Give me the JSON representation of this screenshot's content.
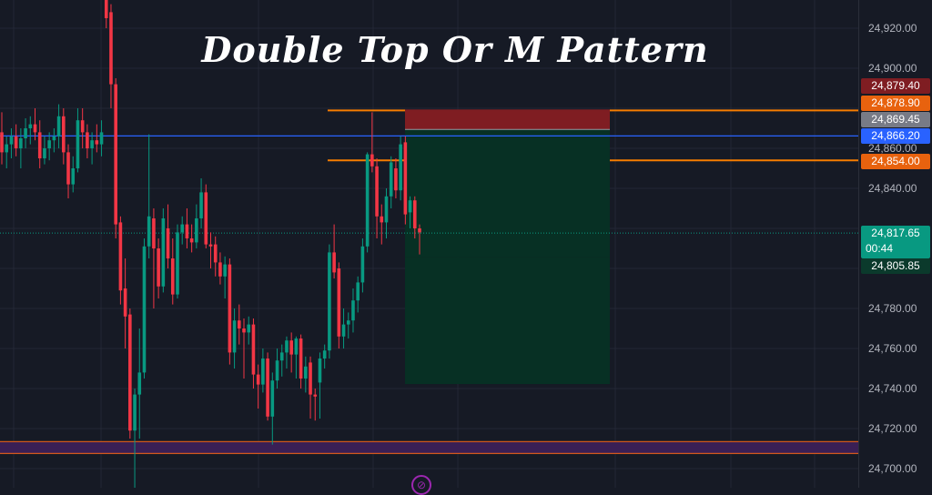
{
  "title": "Double Top Or M Pattern",
  "colors": {
    "background": "#161a25",
    "grid": "#232735",
    "up": "#089981",
    "down": "#f23645",
    "level_orange": "#f57c00",
    "level_blue": "#2962ff",
    "stop_zone": "#7f1d22",
    "target_zone": "#073024",
    "support_band": "#3a1f55",
    "alert_icon": "#9c27b0"
  },
  "price_axis": {
    "ticks": [
      "24,920.00",
      "24,900.00",
      "24,860.00",
      "24,840.00",
      "24,780.00",
      "24,760.00",
      "24,740.00",
      "24,720.00",
      "24,700.00"
    ],
    "labels": [
      {
        "value": "24,879.40",
        "color": "#7f1d22"
      },
      {
        "value": "24,878.90",
        "color": "#e8620e"
      },
      {
        "value": "24,869.45",
        "color": "#787b86"
      },
      {
        "value": "24,866.20",
        "color": "#2962ff"
      },
      {
        "value": "24,854.00",
        "color": "#e8620e"
      },
      {
        "value": "24,817.65",
        "countdown": "00:44",
        "color": "#089981"
      },
      {
        "value": "24,805.85",
        "color": "#0b3a2c"
      }
    ]
  },
  "chart_data": {
    "type": "candlestick",
    "title": "Double Top Or M Pattern",
    "ylim": [
      24690,
      24935
    ],
    "y_ticks": [
      24700,
      24720,
      24740,
      24760,
      24780,
      24800,
      24820,
      24840,
      24860,
      24880,
      24900,
      24920
    ],
    "grid": true,
    "ohlc": [
      [
        24868,
        24878,
        24852,
        24858
      ],
      [
        24858,
        24866,
        24850,
        24862
      ],
      [
        24862,
        24870,
        24855,
        24866
      ],
      [
        24866,
        24872,
        24856,
        24860
      ],
      [
        24860,
        24870,
        24850,
        24865
      ],
      [
        24865,
        24875,
        24860,
        24870
      ],
      [
        24870,
        24876,
        24862,
        24872
      ],
      [
        24872,
        24880,
        24864,
        24868
      ],
      [
        24868,
        24874,
        24850,
        24855
      ],
      [
        24855,
        24866,
        24852,
        24860
      ],
      [
        24860,
        24868,
        24854,
        24864
      ],
      [
        24864,
        24870,
        24858,
        24866
      ],
      [
        24866,
        24882,
        24860,
        24876
      ],
      [
        24876,
        24880,
        24852,
        24858
      ],
      [
        24858,
        24862,
        24835,
        24842
      ],
      [
        24842,
        24856,
        24838,
        24850
      ],
      [
        24850,
        24880,
        24848,
        24874
      ],
      [
        24874,
        24880,
        24860,
        24868
      ],
      [
        24868,
        24872,
        24855,
        24860
      ],
      [
        24860,
        24868,
        24852,
        24864
      ],
      [
        24864,
        24872,
        24858,
        24862
      ],
      [
        24862,
        24874,
        24856,
        24868
      ],
      [
        24935,
        24940,
        24920,
        24925
      ],
      [
        24928,
        24932,
        24880,
        24892
      ],
      [
        24892,
        24895,
        24815,
        24822
      ],
      [
        24823,
        24826,
        24782,
        24789
      ],
      [
        24790,
        24805,
        24760,
        24776
      ],
      [
        24777,
        24780,
        24715,
        24719
      ],
      [
        24719,
        24740,
        24688,
        24737
      ],
      [
        24737,
        24770,
        24715,
        24748
      ],
      [
        24748,
        24815,
        24745,
        24811
      ],
      [
        24811,
        24867,
        24805,
        24826
      ],
      [
        24825,
        24830,
        24780,
        24810
      ],
      [
        24810,
        24815,
        24785,
        24791
      ],
      [
        24791,
        24830,
        24788,
        24825
      ],
      [
        24820,
        24832,
        24800,
        24805
      ],
      [
        24805,
        24815,
        24782,
        24787
      ],
      [
        24787,
        24822,
        24785,
        24818
      ],
      [
        24818,
        24826,
        24812,
        24822
      ],
      [
        24822,
        24830,
        24810,
        24815
      ],
      [
        24815,
        24822,
        24808,
        24813
      ],
      [
        24813,
        24832,
        24810,
        24825
      ],
      [
        24825,
        24845,
        24820,
        24838
      ],
      [
        24838,
        24842,
        24810,
        24812
      ],
      [
        24812,
        24818,
        24800,
        24811
      ],
      [
        24812,
        24816,
        24796,
        24803
      ],
      [
        24803,
        24808,
        24792,
        24796
      ],
      [
        24796,
        24806,
        24785,
        24802
      ],
      [
        24802,
        24805,
        24752,
        24758
      ],
      [
        24758,
        24780,
        24750,
        24774
      ],
      [
        24774,
        24782,
        24762,
        24770
      ],
      [
        24770,
        24775,
        24745,
        24768
      ],
      [
        24768,
        24776,
        24762,
        24772
      ],
      [
        24772,
        24775,
        24740,
        24747
      ],
      [
        24747,
        24752,
        24730,
        24742
      ],
      [
        24742,
        24760,
        24738,
        24755
      ],
      [
        24755,
        24758,
        24724,
        24726
      ],
      [
        24726,
        24748,
        24712,
        24744
      ],
      [
        24744,
        24760,
        24740,
        24754
      ],
      [
        24754,
        24762,
        24746,
        24758
      ],
      [
        24758,
        24766,
        24750,
        24764
      ],
      [
        24764,
        24768,
        24748,
        24757
      ],
      [
        24757,
        24766,
        24745,
        24765
      ],
      [
        24765,
        24767,
        24740,
        24745
      ],
      [
        24745,
        24756,
        24738,
        24751
      ],
      [
        24753,
        24756,
        24725,
        24737
      ],
      [
        24737,
        24740,
        24724,
        24736
      ],
      [
        24743,
        24758,
        24725,
        24755
      ],
      [
        24755,
        24762,
        24750,
        24759
      ],
      [
        24759,
        24812,
        24755,
        24808
      ],
      [
        24808,
        24822,
        24795,
        24798
      ],
      [
        24800,
        24803,
        24760,
        24766
      ],
      [
        24766,
        24780,
        24760,
        24772
      ],
      [
        24772,
        24778,
        24765,
        24774
      ],
      [
        24774,
        24790,
        24768,
        24784
      ],
      [
        24784,
        24796,
        24778,
        24793
      ],
      [
        24793,
        24815,
        24788,
        24811
      ],
      [
        24811,
        24858,
        24808,
        24857
      ],
      [
        24857,
        24878,
        24848,
        24851
      ],
      [
        24851,
        24855,
        24815,
        24826
      ],
      [
        24826,
        24832,
        24812,
        24823
      ],
      [
        24823,
        24840,
        24815,
        24836
      ],
      [
        24836,
        24856,
        24830,
        24853
      ],
      [
        24850,
        24855,
        24835,
        24839
      ],
      [
        24839,
        24866,
        24834,
        24862
      ],
      [
        24863,
        24866,
        24822,
        24827
      ],
      [
        24828,
        24836,
        24820,
        24834
      ],
      [
        24834,
        24836,
        24815,
        24820
      ],
      [
        24820,
        24822,
        24807,
        24818
      ]
    ],
    "levels": {
      "resistance_high": 24878.9,
      "resistance_low": 24854.0,
      "neckline_blue": 24866.2,
      "current_price": 24817.65,
      "support_band": [
        24708,
        24713
      ]
    },
    "position": {
      "stop": 24879.4,
      "entry": 24869.45,
      "target": 24805.85
    }
  }
}
